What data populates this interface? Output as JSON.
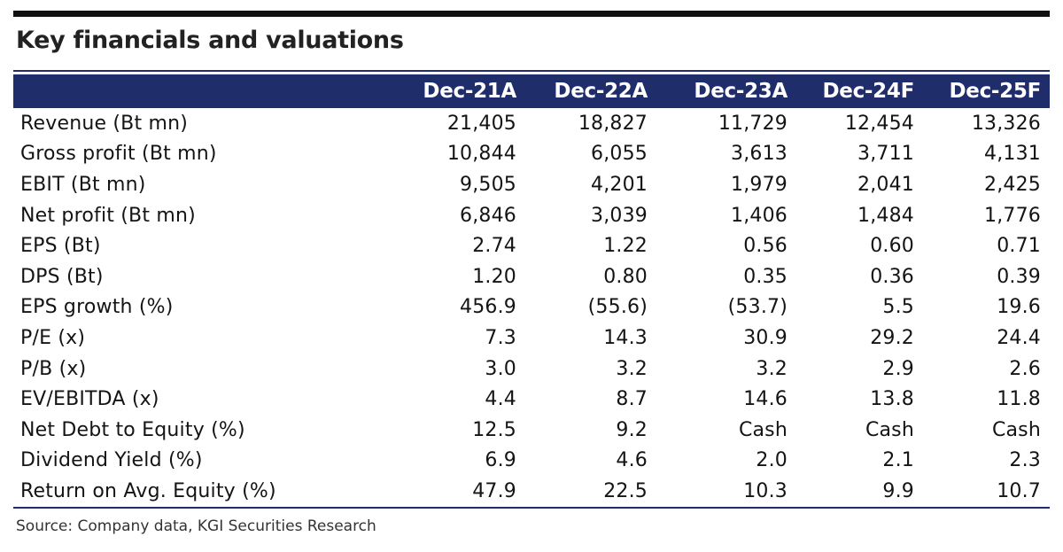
{
  "title": "Key financials and valuations",
  "table": {
    "columns": [
      "Dec-21A",
      "Dec-22A",
      "Dec-23A",
      "Dec-24F",
      "Dec-25F"
    ],
    "rows": [
      {
        "label": "Revenue (Bt mn)",
        "values": [
          "21,405",
          "18,827",
          "11,729",
          "12,454",
          "13,326"
        ]
      },
      {
        "label": "Gross profit (Bt mn)",
        "values": [
          "10,844",
          "6,055",
          "3,613",
          "3,711",
          "4,131"
        ]
      },
      {
        "label": "EBIT (Bt mn)",
        "values": [
          "9,505",
          "4,201",
          "1,979",
          "2,041",
          "2,425"
        ]
      },
      {
        "label": "Net profit (Bt mn)",
        "values": [
          "6,846",
          "3,039",
          "1,406",
          "1,484",
          "1,776"
        ]
      },
      {
        "label": "EPS (Bt)",
        "values": [
          "2.74",
          "1.22",
          "0.56",
          "0.60",
          "0.71"
        ]
      },
      {
        "label": "DPS (Bt)",
        "values": [
          "1.20",
          "0.80",
          "0.35",
          "0.36",
          "0.39"
        ]
      },
      {
        "label": "EPS growth (%)",
        "values": [
          "456.9",
          "(55.6)",
          "(53.7)",
          "5.5",
          "19.6"
        ]
      },
      {
        "label": "P/E (x)",
        "values": [
          "7.3",
          "14.3",
          "30.9",
          "29.2",
          "24.4"
        ]
      },
      {
        "label": "P/B (x)",
        "values": [
          "3.0",
          "3.2",
          "3.2",
          "2.9",
          "2.6"
        ]
      },
      {
        "label": "EV/EBITDA (x)",
        "values": [
          "4.4",
          "8.7",
          "14.6",
          "13.8",
          "11.8"
        ]
      },
      {
        "label": "Net Debt to Equity (%)",
        "values": [
          "12.5",
          "9.2",
          "Cash",
          "Cash",
          "Cash"
        ]
      },
      {
        "label": "Dividend Yield (%)",
        "values": [
          "6.9",
          "4.6",
          "2.0",
          "2.1",
          "2.3"
        ]
      },
      {
        "label": "Return on Avg. Equity (%)",
        "values": [
          "47.9",
          "22.5",
          "10.3",
          "9.9",
          "10.7"
        ]
      }
    ]
  },
  "source": "Source: Company data, KGI Securities Research",
  "colors": {
    "header_bg": "#1f2d6b",
    "header_text": "#ffffff",
    "rule": "#111111"
  }
}
